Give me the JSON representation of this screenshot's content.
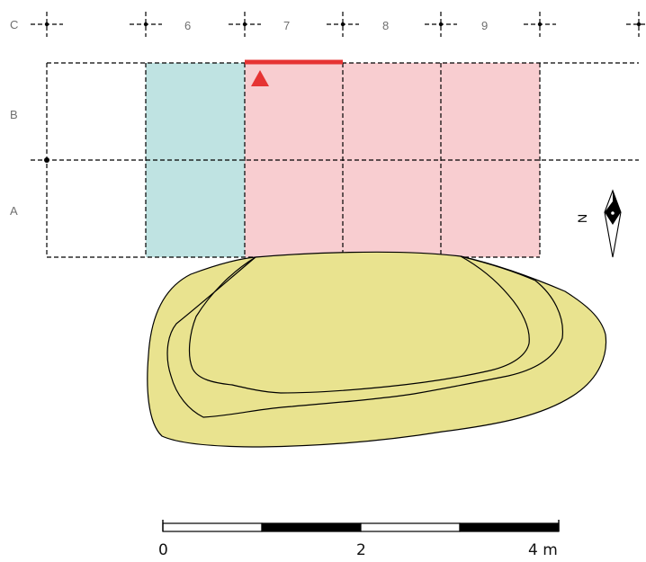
{
  "grid": {
    "columns": [
      "6",
      "7",
      "8",
      "9"
    ],
    "rows": [
      "C",
      "B",
      "A"
    ]
  },
  "colors": {
    "cyan_fill": "#bfe3e2",
    "pink_fill": "#f8cdd0",
    "red_marker": "#e63333",
    "mound_fill": "#e9e38f",
    "line": "#000000"
  },
  "north": {
    "label": "N",
    "icon": "north-arrow-icon"
  },
  "scale_bar": {
    "labels": [
      "0",
      "2",
      "4 m"
    ]
  }
}
